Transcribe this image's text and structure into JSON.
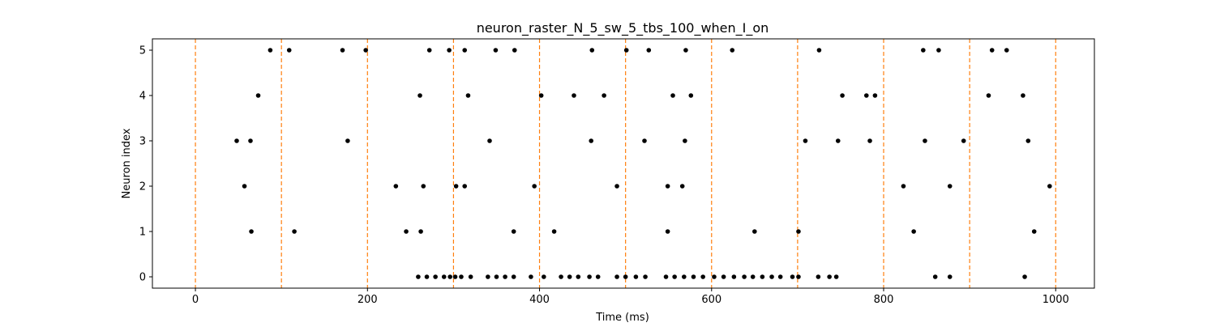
{
  "chart_data": {
    "type": "scatter",
    "title": "neuron_raster_N_5_sw_5_tbs_100_when_I_on",
    "xlabel": "Time (ms)",
    "ylabel": "Neuron index",
    "xlim": [
      -50,
      1045
    ],
    "ylim": [
      -0.25,
      5.25
    ],
    "x_ticks": [
      0,
      200,
      400,
      600,
      800,
      1000
    ],
    "y_ticks": [
      0,
      1,
      2,
      3,
      4,
      5
    ],
    "grid": false,
    "marker_color": "#000000",
    "vline_color": "#ff7f0e",
    "vlines": [
      0,
      100,
      200,
      300,
      400,
      500,
      600,
      700,
      800,
      900,
      1000
    ],
    "series": [
      {
        "neuron": 0,
        "x": [
          259,
          269,
          279,
          289,
          296,
          302,
          309,
          320,
          340,
          350,
          360,
          370,
          390,
          405,
          425,
          435,
          445,
          458,
          468,
          490,
          500,
          512,
          523,
          547,
          557,
          568,
          579,
          590,
          603,
          614,
          626,
          638,
          648,
          659,
          670,
          680,
          694,
          701,
          724,
          737,
          745,
          860,
          877,
          964
        ]
      },
      {
        "neuron": 1,
        "x": [
          65,
          115,
          245,
          262,
          370,
          417,
          549,
          650,
          701,
          835,
          975
        ]
      },
      {
        "neuron": 2,
        "x": [
          57,
          233,
          265,
          303,
          313,
          394,
          490,
          549,
          566,
          823,
          877,
          993
        ]
      },
      {
        "neuron": 3,
        "x": [
          48,
          64,
          177,
          342,
          460,
          522,
          569,
          709,
          747,
          784,
          848,
          893,
          968
        ]
      },
      {
        "neuron": 4,
        "x": [
          73,
          261,
          317,
          402,
          440,
          475,
          555,
          576,
          752,
          780,
          790,
          922,
          962
        ]
      },
      {
        "neuron": 5,
        "x": [
          87,
          109,
          171,
          198,
          272,
          295,
          313,
          349,
          371,
          461,
          501,
          527,
          570,
          624,
          725,
          846,
          864,
          926,
          943
        ]
      }
    ]
  }
}
